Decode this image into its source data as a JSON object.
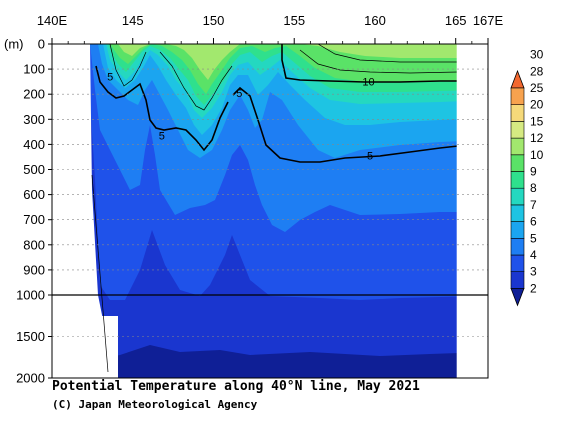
{
  "chart_data": {
    "type": "heatmap",
    "title": "Potential Temperature along 40°N line, May 2021",
    "credit": "(C) Japan Meteorological Agency",
    "x_axis": {
      "ticks": [
        "140E",
        "145",
        "150",
        "155",
        "160",
        "165",
        "167E"
      ],
      "values": [
        140,
        145,
        150,
        155,
        160,
        165,
        167
      ],
      "range": [
        140,
        167
      ]
    },
    "y_axis": {
      "unit_label": "(m)",
      "ticks": [
        "0",
        "100",
        "200",
        "300",
        "400",
        "500",
        "600",
        "700",
        "800",
        "900",
        "1000",
        "1500",
        "2000"
      ],
      "values": [
        0,
        100,
        200,
        300,
        400,
        500,
        600,
        700,
        800,
        900,
        1000,
        1500,
        2000
      ],
      "range": [
        0,
        2000
      ],
      "scale": "linear 0-1000, compressed 1000-2000"
    },
    "contour_labels": [
      {
        "text": "5",
        "lon": 143.6,
        "depth": 130
      },
      {
        "text": "5",
        "lon": 151.6,
        "depth": 195
      },
      {
        "text": "5",
        "lon": 146.8,
        "depth": 365
      },
      {
        "text": "10",
        "lon": 159.6,
        "depth": 150
      },
      {
        "text": "5",
        "lon": 159.7,
        "depth": 445
      }
    ],
    "colorbar": {
      "levels": [
        2,
        3,
        4,
        5,
        6,
        7,
        8,
        9,
        10,
        12,
        15,
        20,
        25,
        28,
        30
      ],
      "labels": [
        "2",
        "3",
        "4",
        "5",
        "6",
        "7",
        "8",
        "9",
        "10",
        "12",
        "15",
        "20",
        "25",
        "28",
        "30"
      ],
      "colors": [
        "#0f1f96",
        "#1a36cf",
        "#1f52ea",
        "#1e7ef3",
        "#1ba5f0",
        "#1ec4e3",
        "#24d8c0",
        "#2fe08d",
        "#5ae267",
        "#a2e86e",
        "#d6ea82",
        "#f5d97a",
        "#f7a24e",
        "#f3682f"
      ]
    }
  }
}
